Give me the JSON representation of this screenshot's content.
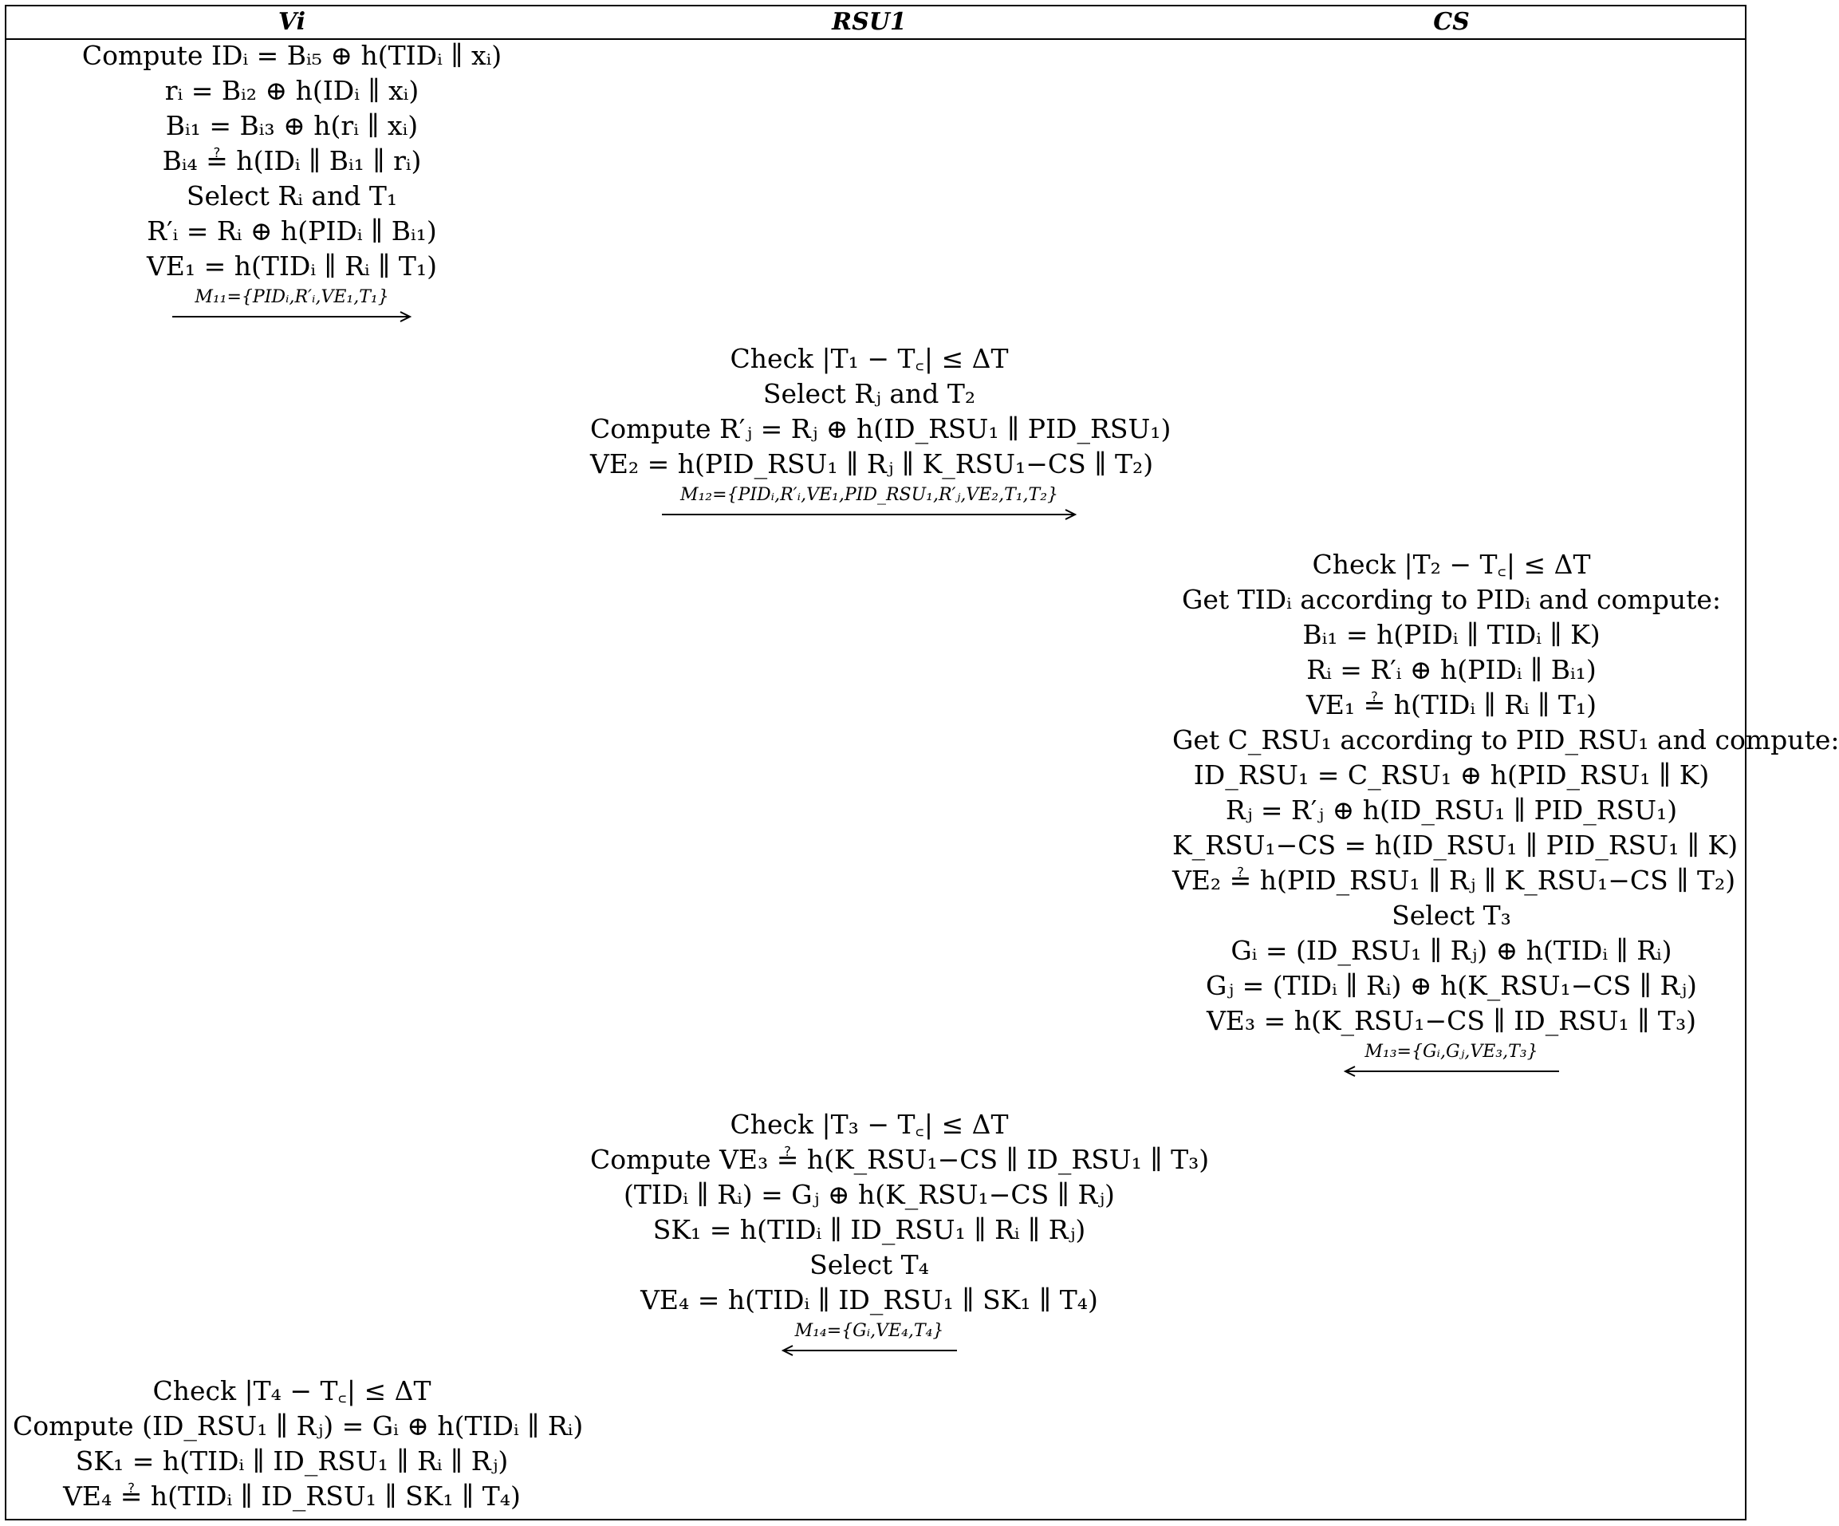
{
  "headers": {
    "vehicle": "Vi",
    "rsu": "RSU1",
    "server": "CS"
  },
  "vehicle_step1": {
    "lines": [
      "Compute IDᵢ = Bᵢ₅ ⊕ h(TIDᵢ ∥ xᵢ)",
      "rᵢ = Bᵢ₂ ⊕ h(IDᵢ ∥ xᵢ)",
      "Bᵢ₁ = Bᵢ₃ ⊕ h(rᵢ ∥ xᵢ)",
      "Bᵢ₄ ≟ h(IDᵢ ∥ Bᵢ₁ ∥ rᵢ)",
      "Select Rᵢ and T₁",
      "R′ᵢ = Rᵢ ⊕ h(PIDᵢ ∥ Bᵢ₁)",
      "VE₁ = h(TIDᵢ ∥ Rᵢ ∥ T₁)"
    ],
    "message": "M₁₁={PIDᵢ,R′ᵢ,VE₁,T₁}"
  },
  "rsu_step1": {
    "lines": [
      "Check |T₁ − T꜀| ≤ ΔT",
      "Select Rⱼ and T₂",
      "Compute R′ⱼ = Rⱼ ⊕ h(ID_RSU₁ ∥ PID_RSU₁)",
      "VE₂ = h(PID_RSU₁ ∥ Rⱼ ∥ K_RSU₁−CS ∥ T₂)"
    ],
    "message": "M₁₂={PIDᵢ,R′ᵢ,VE₁,PID_RSU₁,R′ⱼ,VE₂,T₁,T₂}"
  },
  "server_step": {
    "lines": [
      "Check |T₂ − T꜀| ≤ ΔT",
      "Get TIDᵢ according to PIDᵢ and compute:",
      "Bᵢ₁ = h(PIDᵢ ∥ TIDᵢ ∥ K)",
      "Rᵢ = R′ᵢ ⊕ h(PIDᵢ ∥ Bᵢ₁)",
      "VE₁ ≟ h(TIDᵢ ∥ Rᵢ ∥ T₁)",
      "Get C_RSU₁ according to PID_RSU₁ and compute:",
      "ID_RSU₁ = C_RSU₁ ⊕ h(PID_RSU₁ ∥ K)",
      "Rⱼ = R′ⱼ ⊕ h(ID_RSU₁ ∥ PID_RSU₁)",
      "K_RSU₁−CS = h(ID_RSU₁ ∥ PID_RSU₁ ∥ K)",
      "VE₂ ≟ h(PID_RSU₁ ∥ Rⱼ ∥ K_RSU₁−CS ∥ T₂)",
      "Select T₃",
      "Gᵢ = (ID_RSU₁ ∥ Rⱼ) ⊕ h(TIDᵢ ∥ Rᵢ)",
      "Gⱼ = (TIDᵢ ∥ Rᵢ) ⊕ h(K_RSU₁−CS ∥ Rⱼ)",
      "VE₃ = h(K_RSU₁−CS ∥ ID_RSU₁ ∥ T₃)"
    ],
    "message": "M₁₃={Gᵢ,Gⱼ,VE₃,T₃}"
  },
  "rsu_step2": {
    "lines": [
      "Check |T₃ − T꜀| ≤ ΔT",
      "Compute VE₃ ≟ h(K_RSU₁−CS ∥ ID_RSU₁ ∥ T₃)",
      "(TIDᵢ ∥ Rᵢ) = Gⱼ ⊕ h(K_RSU₁−CS ∥ Rⱼ)",
      "SK₁ = h(TIDᵢ ∥ ID_RSU₁ ∥ Rᵢ ∥ Rⱼ)",
      "Select T₄",
      "VE₄ = h(TIDᵢ ∥ ID_RSU₁ ∥ SK₁ ∥ T₄)"
    ],
    "message": "M₁₄={Gᵢ,VE₄,T₄}"
  },
  "vehicle_step2": {
    "lines": [
      "Check |T₄ − T꜀| ≤ ΔT",
      "Compute (ID_RSU₁ ∥ Rⱼ) = Gᵢ ⊕ h(TIDᵢ ∥ Rᵢ)",
      "SK₁ = h(TIDᵢ ∥ ID_RSU₁ ∥ Rᵢ ∥ Rⱼ)",
      "VE₄ ≟ h(TIDᵢ ∥ ID_RSU₁ ∥ SK₁ ∥ T₄)"
    ]
  }
}
